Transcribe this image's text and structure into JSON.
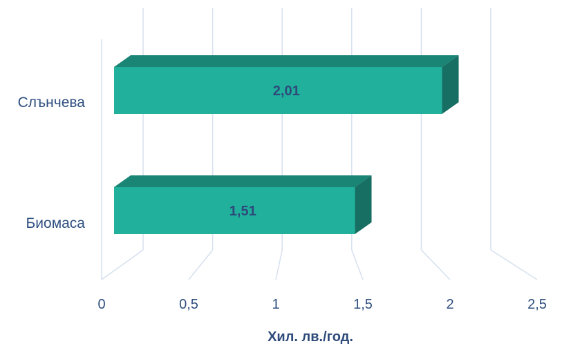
{
  "chart_data": {
    "type": "bar",
    "orientation": "horizontal",
    "style": "3d",
    "categories": [
      "Слънчева",
      "Биомаса"
    ],
    "values": [
      2.01,
      1.51
    ],
    "data_labels": [
      "2,01",
      "1,51"
    ],
    "xlabel": "Хил. лв./год.",
    "ylabel": "",
    "xlim": [
      0,
      2.5
    ],
    "x_ticks": [
      0,
      0.5,
      1,
      1.5,
      2,
      2.5
    ],
    "x_tick_labels": [
      "0",
      "0,5",
      "1",
      "1,5",
      "2",
      "2,5"
    ],
    "grid": true,
    "colors": {
      "bar_front": "#20b09c",
      "bar_top": "#1a8575",
      "bar_side": "#176e62",
      "grid": "#d6e0ef",
      "text": "#2f4f7f"
    }
  }
}
